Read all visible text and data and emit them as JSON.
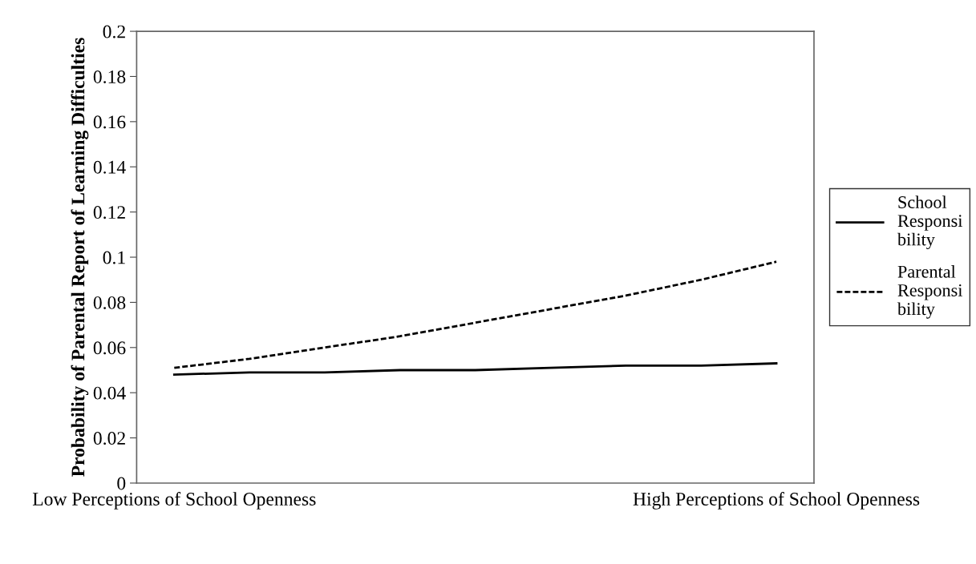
{
  "chart_data": {
    "type": "line",
    "ylabel": "Probability of Parental Report of Learning Difficulties",
    "categories": [
      "Low Perceptions of School Openness",
      null,
      null,
      null,
      null,
      null,
      null,
      null,
      "High Perceptions of School Openness"
    ],
    "series": [
      {
        "name": "School\nResponsi\nbility",
        "color": "#000000",
        "line_style": "solid",
        "values": [
          0.048,
          0.049,
          0.049,
          0.05,
          0.05,
          0.051,
          0.052,
          0.052,
          0.053
        ]
      },
      {
        "name": "Parental\nResponsi\nbility",
        "color": "#000000",
        "line_style": "dashed",
        "values": [
          0.051,
          0.055,
          0.06,
          0.065,
          0.071,
          0.077,
          0.083,
          0.09,
          0.098
        ]
      }
    ],
    "ylim": [
      0,
      0.2
    ],
    "yticks": [
      0,
      0.02,
      0.04,
      0.06,
      0.08,
      0.1,
      0.12,
      0.14,
      0.16,
      0.18,
      0.2
    ],
    "grid": false,
    "legend": "right",
    "marker": "none"
  }
}
